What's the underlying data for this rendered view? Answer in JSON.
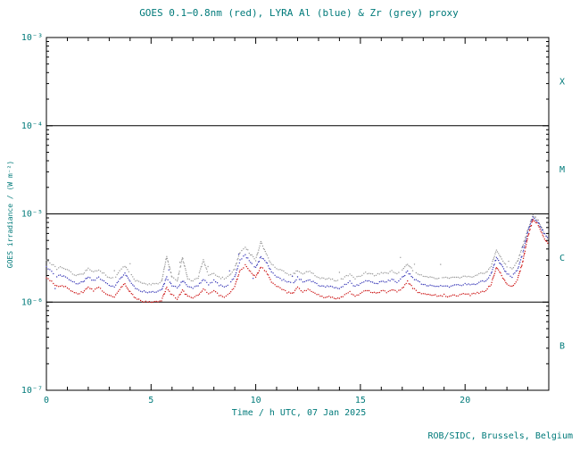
{
  "footer": "ROB/SIDC, Brussels, Belgium",
  "colors": {
    "axis_text": "#007a7a",
    "frame": "#000000",
    "goes_red": "#cc1111",
    "lyra_al_blue": "#3a3ab8",
    "zr_grey": "#9a9a9a"
  },
  "chart_data": {
    "type": "scatter",
    "title": "GOES 0.1−0.8nm (red), LYRA Al (blue) & Zr (grey) proxy",
    "xlabel": "Time / h UTC, 07 Jan 2025",
    "ylabel": "GOES irradiance / (W m⁻²)",
    "xlim": [
      0,
      24
    ],
    "x_major_ticks": [
      0,
      5,
      10,
      15,
      20
    ],
    "x_minor_step": 1,
    "ylog": true,
    "ylim": [
      1e-07,
      0.001
    ],
    "y_ticks": [
      {
        "value": 0.001,
        "label": "10⁻³"
      },
      {
        "value": 0.0001,
        "label": "10⁻⁴"
      },
      {
        "value": 1e-05,
        "label": "10⁻⁵"
      },
      {
        "value": 1e-06,
        "label": "10⁻⁶"
      },
      {
        "value": 1e-07,
        "label": "10⁻⁷"
      }
    ],
    "threshold_lines": [
      0.0001,
      1e-05,
      1e-06
    ],
    "flare_classes": [
      {
        "label": "X",
        "band": [
          0.0001,
          0.001
        ]
      },
      {
        "label": "M",
        "band": [
          1e-05,
          0.0001
        ]
      },
      {
        "label": "C",
        "band": [
          1e-06,
          1e-05
        ]
      },
      {
        "label": "B",
        "band": [
          1e-07,
          1e-06
        ]
      }
    ],
    "grid": false,
    "legend": "encoded-in-title",
    "unit_factor": 1e-06,
    "x": [
      0,
      0.25,
      0.5,
      0.75,
      1,
      1.25,
      1.5,
      1.75,
      2,
      2.25,
      2.5,
      2.75,
      3,
      3.25,
      3.5,
      3.75,
      4,
      4.25,
      4.5,
      4.75,
      5,
      5.25,
      5.5,
      5.75,
      6,
      6.25,
      6.5,
      6.75,
      7,
      7.25,
      7.5,
      7.75,
      8,
      8.25,
      8.5,
      8.75,
      9,
      9.25,
      9.5,
      9.75,
      10,
      10.25,
      10.5,
      10.75,
      11,
      11.25,
      11.5,
      11.75,
      12,
      12.25,
      12.5,
      12.75,
      13,
      13.25,
      13.5,
      13.75,
      14,
      14.25,
      14.5,
      14.75,
      15,
      15.25,
      15.5,
      15.75,
      16,
      16.25,
      16.5,
      16.75,
      17,
      17.25,
      17.5,
      17.75,
      18,
      18.25,
      18.5,
      18.75,
      19,
      19.25,
      19.5,
      19.75,
      20,
      20.25,
      20.5,
      20.75,
      21,
      21.25,
      21.5,
      21.75,
      22,
      22.25,
      22.5,
      22.75,
      23,
      23.25,
      23.5,
      23.75,
      24
    ],
    "series": [
      {
        "id": "zr",
        "name": "Zr proxy",
        "color_key": "zr_grey",
        "values": [
          3.0,
          2.7,
          2.4,
          2.5,
          2.3,
          2.1,
          2.0,
          2.1,
          2.4,
          2.2,
          2.3,
          2.1,
          1.9,
          1.85,
          2.25,
          2.55,
          2.1,
          1.75,
          1.7,
          1.6,
          1.6,
          1.6,
          1.7,
          3.3,
          1.9,
          1.75,
          3.2,
          1.85,
          1.75,
          1.9,
          3.0,
          2.0,
          2.15,
          1.9,
          1.85,
          2.0,
          2.4,
          3.7,
          4.2,
          3.5,
          3.0,
          4.8,
          3.5,
          2.7,
          2.4,
          2.25,
          2.1,
          2.0,
          2.3,
          2.1,
          2.25,
          2.1,
          1.9,
          1.85,
          1.85,
          1.75,
          1.75,
          1.9,
          2.1,
          1.85,
          2.0,
          2.15,
          2.1,
          2.0,
          2.15,
          2.1,
          2.25,
          2.1,
          2.3,
          2.7,
          2.3,
          2.1,
          2.0,
          1.9,
          1.9,
          1.85,
          1.9,
          1.85,
          1.9,
          1.9,
          2.0,
          1.9,
          2.0,
          2.1,
          2.15,
          2.55,
          3.9,
          3.1,
          2.55,
          2.4,
          2.85,
          4.3,
          6.6,
          9.7,
          8.4,
          6.3,
          5.2
        ]
      },
      {
        "id": "al",
        "name": "LYRA Al proxy",
        "color_key": "lyra_al_blue",
        "values": [
          2.5,
          2.2,
          1.95,
          2.0,
          1.9,
          1.7,
          1.6,
          1.7,
          1.95,
          1.75,
          1.9,
          1.7,
          1.55,
          1.5,
          1.8,
          2.1,
          1.7,
          1.45,
          1.35,
          1.3,
          1.3,
          1.3,
          1.35,
          1.9,
          1.55,
          1.45,
          1.75,
          1.5,
          1.45,
          1.55,
          1.8,
          1.6,
          1.75,
          1.55,
          1.5,
          1.6,
          1.95,
          3.0,
          3.4,
          2.85,
          2.45,
          3.25,
          2.85,
          2.2,
          1.95,
          1.8,
          1.7,
          1.6,
          1.9,
          1.7,
          1.8,
          1.7,
          1.55,
          1.5,
          1.5,
          1.45,
          1.45,
          1.55,
          1.7,
          1.5,
          1.6,
          1.75,
          1.7,
          1.6,
          1.75,
          1.7,
          1.8,
          1.7,
          1.9,
          2.2,
          1.9,
          1.7,
          1.6,
          1.55,
          1.55,
          1.5,
          1.55,
          1.5,
          1.55,
          1.55,
          1.6,
          1.55,
          1.6,
          1.7,
          1.75,
          2.1,
          3.2,
          2.6,
          2.1,
          1.95,
          2.3,
          3.5,
          6.3,
          9.3,
          8.0,
          6.1,
          5.1
        ]
      },
      {
        "id": "goes",
        "name": "GOES 0.1−0.8nm",
        "color_key": "goes_red",
        "values": [
          1.9,
          1.7,
          1.5,
          1.55,
          1.45,
          1.3,
          1.25,
          1.3,
          1.5,
          1.35,
          1.45,
          1.3,
          1.2,
          1.15,
          1.4,
          1.6,
          1.3,
          1.1,
          1.05,
          1.0,
          1.0,
          1.0,
          1.05,
          1.45,
          1.2,
          1.1,
          1.35,
          1.15,
          1.1,
          1.2,
          1.4,
          1.25,
          1.35,
          1.2,
          1.15,
          1.25,
          1.5,
          2.3,
          2.6,
          2.2,
          1.9,
          2.5,
          2.2,
          1.7,
          1.5,
          1.4,
          1.3,
          1.25,
          1.45,
          1.3,
          1.4,
          1.3,
          1.2,
          1.15,
          1.15,
          1.1,
          1.1,
          1.2,
          1.3,
          1.15,
          1.25,
          1.35,
          1.3,
          1.25,
          1.35,
          1.3,
          1.4,
          1.3,
          1.45,
          1.7,
          1.45,
          1.3,
          1.25,
          1.2,
          1.2,
          1.15,
          1.2,
          1.15,
          1.2,
          1.2,
          1.25,
          1.2,
          1.25,
          1.3,
          1.35,
          1.6,
          2.5,
          2.0,
          1.6,
          1.5,
          1.8,
          2.8,
          5.5,
          8.8,
          7.5,
          5.5,
          4.5
        ]
      }
    ]
  }
}
